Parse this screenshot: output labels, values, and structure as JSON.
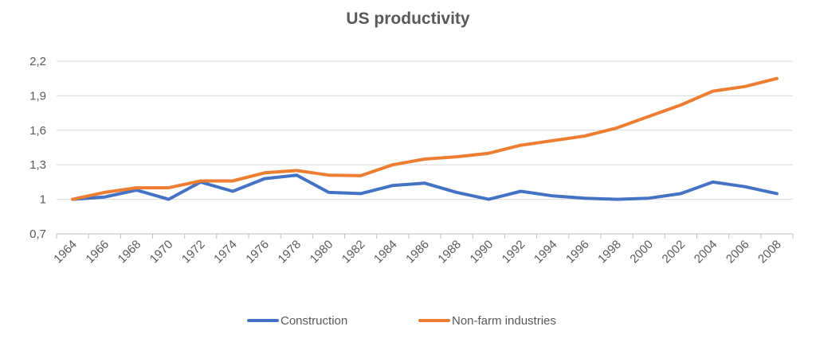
{
  "chart_data": {
    "type": "line",
    "title": "US productivity",
    "x": [
      "1964",
      "1966",
      "1968",
      "1970",
      "1972",
      "1974",
      "1976",
      "1978",
      "1980",
      "1982",
      "1984",
      "1986",
      "1988",
      "1990",
      "1992",
      "1994",
      "1996",
      "1998",
      "2000",
      "2002",
      "2004",
      "2006",
      "2008"
    ],
    "series": [
      {
        "name": "Construction",
        "color": "#4472C4",
        "values": [
          1.0,
          1.02,
          1.08,
          1.0,
          1.15,
          1.07,
          1.18,
          1.21,
          1.06,
          1.05,
          1.12,
          1.14,
          1.06,
          1.0,
          1.07,
          1.03,
          1.01,
          1.0,
          1.01,
          1.05,
          1.15,
          1.11,
          1.05
        ]
      },
      {
        "name": "Non-farm industries",
        "color": "#ED7D31",
        "values": [
          1.0,
          1.06,
          1.1,
          1.1,
          1.16,
          1.16,
          1.23,
          1.25,
          1.21,
          1.205,
          1.3,
          1.35,
          1.37,
          1.4,
          1.47,
          1.51,
          1.55,
          1.62,
          1.72,
          1.82,
          1.94,
          1.98,
          2.05
        ]
      }
    ],
    "yticks": [
      "0,7",
      "1",
      "1,3",
      "1,6",
      "1,9",
      "2,2"
    ],
    "ytick_values": [
      0.7,
      1.0,
      1.3,
      1.6,
      1.9,
      2.2
    ],
    "ylim": [
      0.7,
      2.2
    ],
    "grid": true,
    "legend_position": "bottom"
  }
}
